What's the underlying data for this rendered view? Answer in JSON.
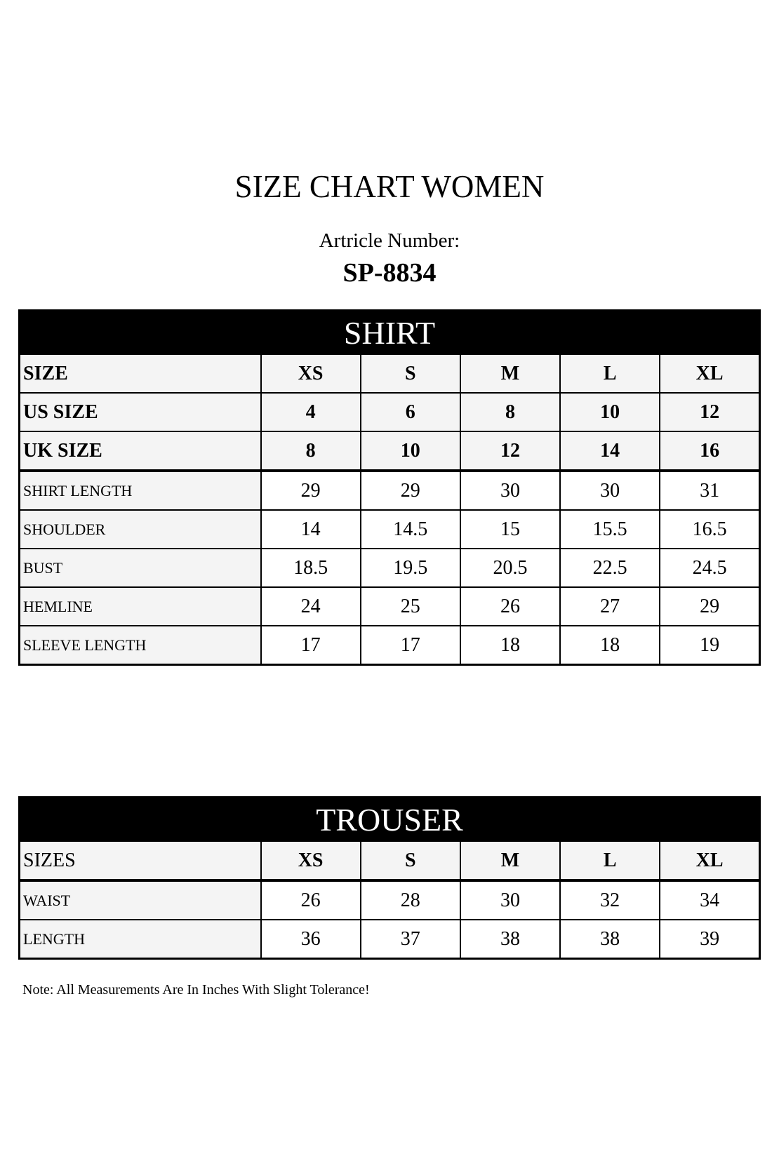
{
  "title": "SIZE CHART WOMEN",
  "article_label": "Artricle Number:",
  "article_number": "SP-8834",
  "shirt": {
    "heading": "SHIRT",
    "header_rows": [
      {
        "label": "SIZE",
        "values": [
          "XS",
          "S",
          "M",
          "L",
          "XL"
        ]
      },
      {
        "label": "US SIZE",
        "values": [
          "4",
          "6",
          "8",
          "10",
          "12"
        ]
      },
      {
        "label": "UK SIZE",
        "values": [
          "8",
          "10",
          "12",
          "14",
          "16"
        ]
      }
    ],
    "rows": [
      {
        "label": "SHIRT LENGTH",
        "values": [
          "29",
          "29",
          "30",
          "30",
          "31"
        ]
      },
      {
        "label": "SHOULDER",
        "values": [
          "14",
          "14.5",
          "15",
          "15.5",
          "16.5"
        ]
      },
      {
        "label": "BUST",
        "values": [
          "18.5",
          "19.5",
          "20.5",
          "22.5",
          "24.5"
        ]
      },
      {
        "label": "HEMLINE",
        "values": [
          "24",
          "25",
          "26",
          "27",
          "29"
        ]
      },
      {
        "label": "SLEEVE LENGTH",
        "values": [
          "17",
          "17",
          "18",
          "18",
          "19"
        ]
      }
    ]
  },
  "trouser": {
    "heading": "TROUSER",
    "header_row": {
      "label": "SIZES",
      "values": [
        "XS",
        "S",
        "M",
        "L",
        "XL"
      ]
    },
    "rows": [
      {
        "label": "WAIST",
        "values": [
          "26",
          "28",
          "30",
          "32",
          "34"
        ]
      },
      {
        "label": "LENGTH",
        "values": [
          "36",
          "37",
          "38",
          "38",
          "39"
        ]
      }
    ]
  },
  "note": "Note: All Measurements Are In Inches With Slight Tolerance!"
}
